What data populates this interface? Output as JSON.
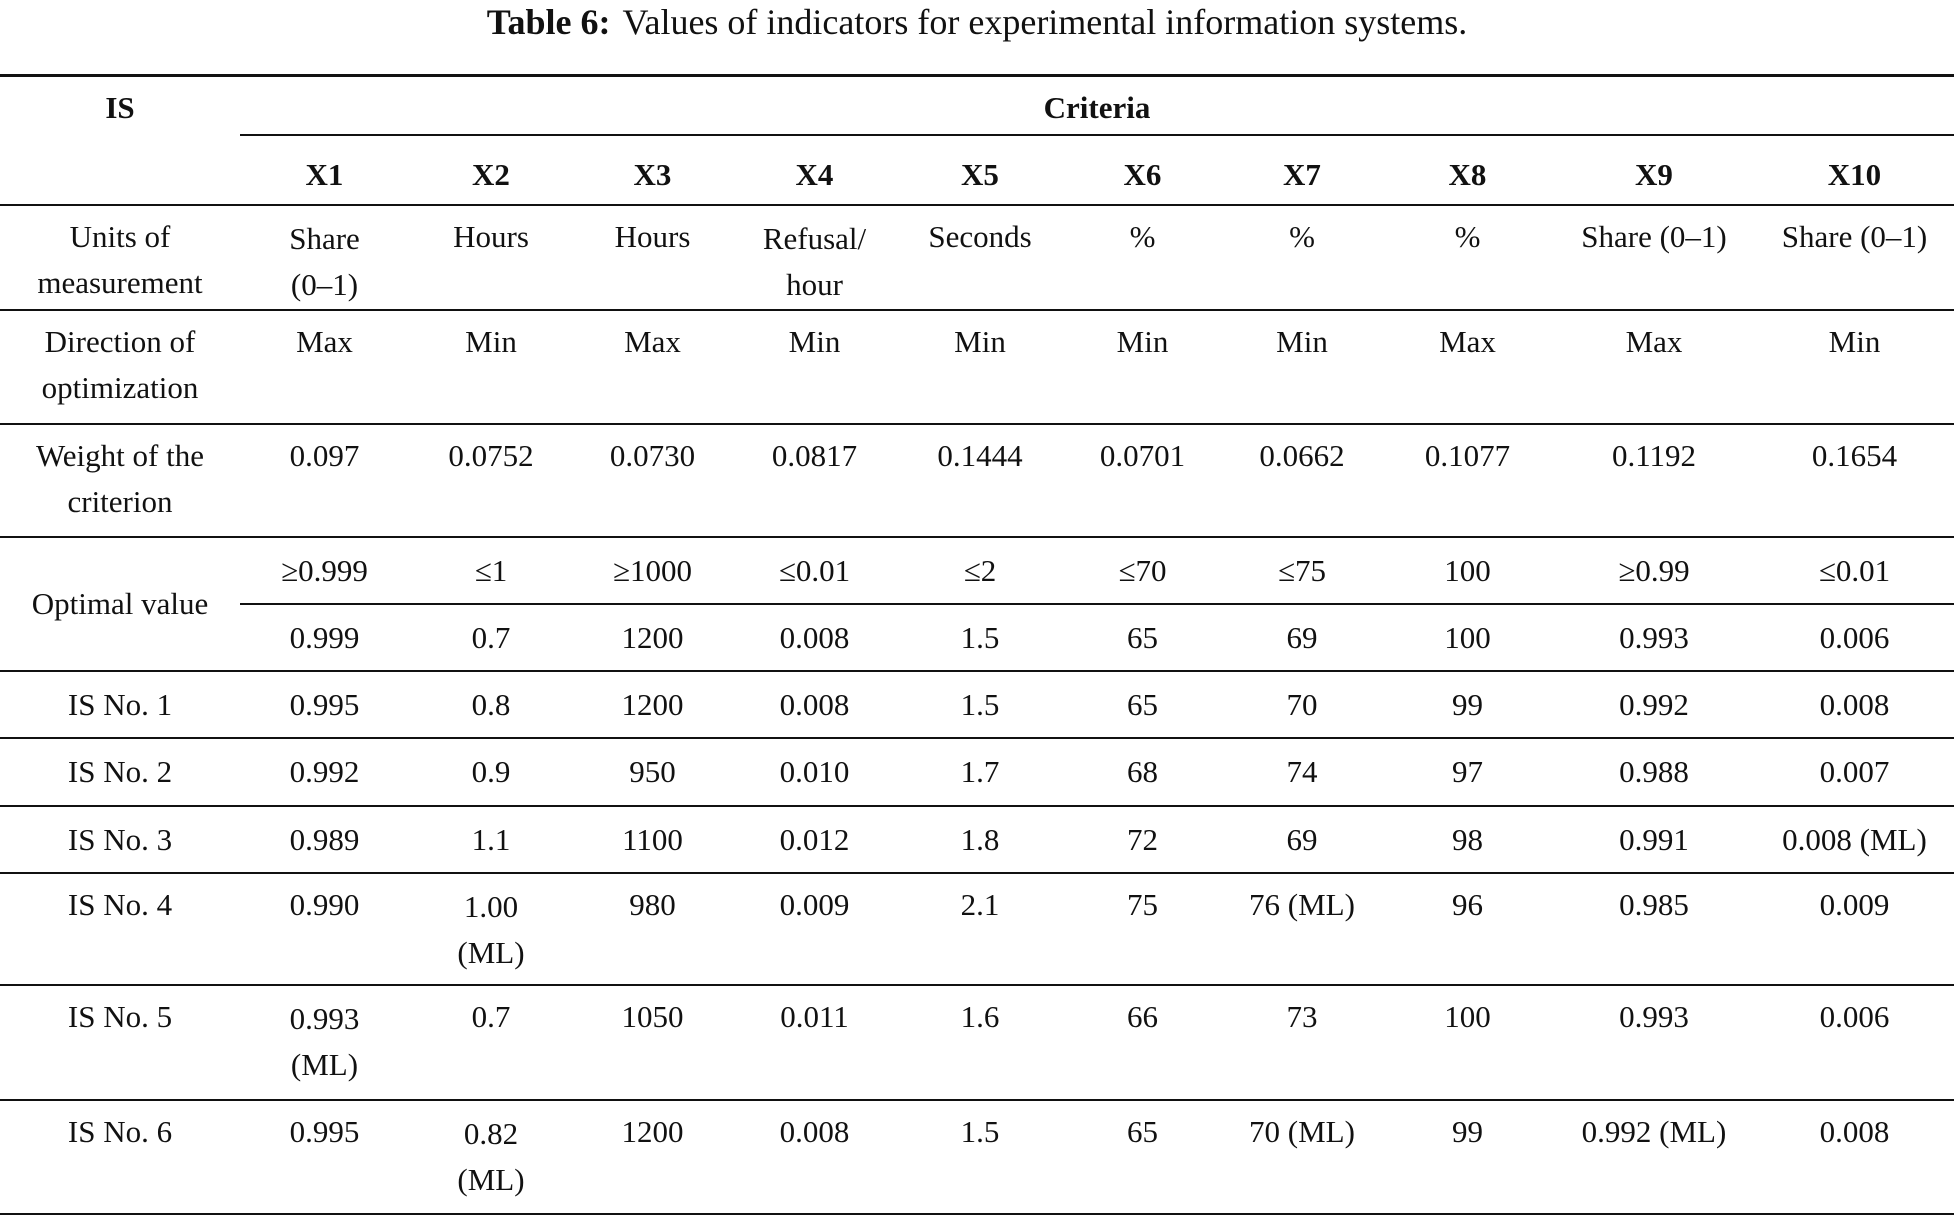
{
  "title": {
    "label": "Table 6:",
    "text": "Values of indicators for experimental information systems."
  },
  "header": {
    "is": "IS",
    "criteria": "Criteria",
    "columns": [
      "X1",
      "X2",
      "X3",
      "X4",
      "X5",
      "X6",
      "X7",
      "X8",
      "X9",
      "X10"
    ]
  },
  "rows": [
    {
      "label": "Units of measurement",
      "values": [
        "Share (0–1)",
        "Hours",
        "Hours",
        "Refusal/ hour",
        "Seconds",
        "%",
        "%",
        "%",
        "Share (0–1)",
        "Share (0–1)"
      ]
    },
    {
      "label": "Direction of optimization",
      "values": [
        "Max",
        "Min",
        "Max",
        "Min",
        "Min",
        "Min",
        "Min",
        "Max",
        "Max",
        "Min"
      ]
    },
    {
      "label": "Weight of the criterion",
      "values": [
        "0.097",
        "0.0752",
        "0.0730",
        "0.0817",
        "0.1444",
        "0.0701",
        "0.0662",
        "0.1077",
        "0.1192",
        "0.1654"
      ]
    }
  ],
  "optimal": {
    "label": "Optimal value",
    "bounds": [
      "≥0.999",
      "≤1",
      "≥1000",
      "≤0.01",
      "≤2",
      "≤70",
      "≤75",
      "100",
      "≥0.99",
      "≤0.01"
    ],
    "values": [
      "0.999",
      "0.7",
      "1200",
      "0.008",
      "1.5",
      "65",
      "69",
      "100",
      "0.993",
      "0.006"
    ]
  },
  "systems": [
    {
      "label": "IS No. 1",
      "values": [
        "0.995",
        "0.8",
        "1200",
        "0.008",
        "1.5",
        "65",
        "70",
        "99",
        "0.992",
        "0.008"
      ]
    },
    {
      "label": "IS No. 2",
      "values": [
        "0.992",
        "0.9",
        "950",
        "0.010",
        "1.7",
        "68",
        "74",
        "97",
        "0.988",
        "0.007"
      ]
    },
    {
      "label": "IS No. 3",
      "values": [
        "0.989",
        "1.1",
        "1100",
        "0.012",
        "1.8",
        "72",
        "69",
        "98",
        "0.991",
        "0.008 (ML)"
      ]
    },
    {
      "label": "IS No. 4",
      "values": [
        "0.990",
        "1.00 (ML)",
        "980",
        "0.009",
        "2.1",
        "75",
        "76 (ML)",
        "96",
        "0.985",
        "0.009"
      ]
    },
    {
      "label": "IS No. 5",
      "values": [
        "0.993 (ML)",
        "0.7",
        "1050",
        "0.011",
        "1.6",
        "66",
        "73",
        "100",
        "0.993",
        "0.006"
      ]
    },
    {
      "label": "IS No. 6",
      "values": [
        "0.995",
        "0.82 (ML)",
        "1200",
        "0.008",
        "1.5",
        "65",
        "70 (ML)",
        "99",
        "0.992 (ML)",
        "0.008"
      ]
    }
  ]
}
